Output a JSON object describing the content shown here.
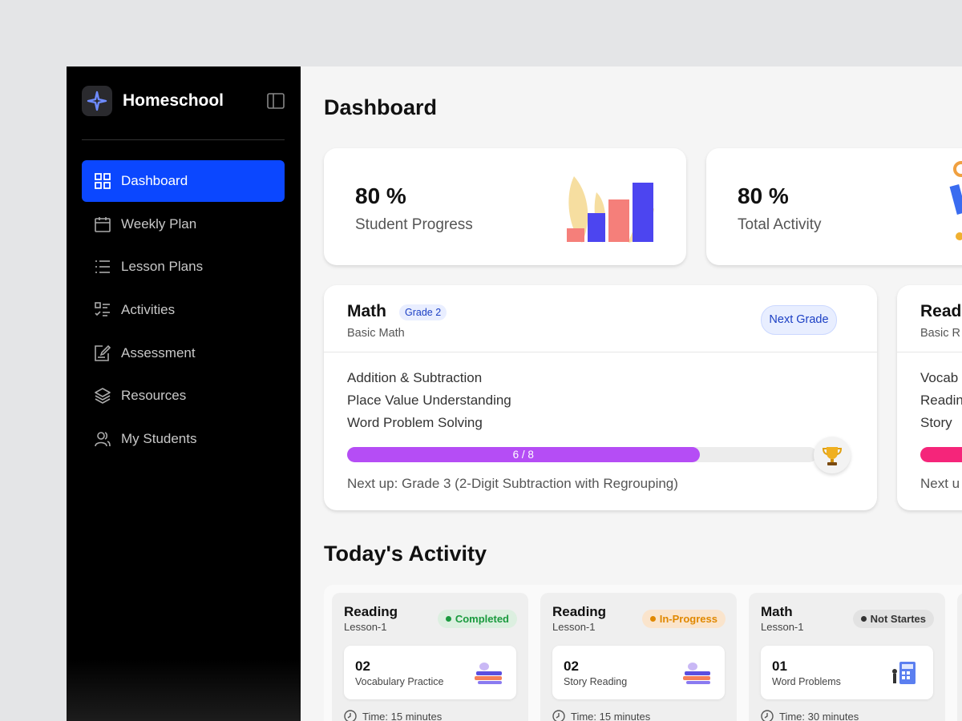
{
  "sidebar": {
    "brand": "Homeschool",
    "nav": [
      "Dashboard",
      "Weekly Plan",
      "Lesson Plans",
      "Activities",
      "Assessment",
      "Resources",
      "My Students"
    ]
  },
  "header": {
    "title": "Dashboard"
  },
  "stats": [
    {
      "value": "80 %",
      "label": "Student Progress"
    },
    {
      "value": "80 %",
      "label": "Total Activity"
    }
  ],
  "subjects": [
    {
      "name": "Math",
      "grade": "Grade 2",
      "subtitle": "Basic Math",
      "button": "Next Grade",
      "topics": [
        "Addition & Subtraction",
        "Place Value Understanding",
        "Word Problem Solving"
      ],
      "progress": {
        "value": 6,
        "max": 8,
        "label": "6 / 8"
      },
      "next": "Next up: Grade 3 (2-Digit Subtraction with Regrouping)"
    },
    {
      "name": "Read",
      "subtitle": "Basic R",
      "topics": [
        "Vocab",
        "Readin",
        "Story"
      ],
      "next": "Next u"
    }
  ],
  "activity": {
    "title": "Today's Activity",
    "cards": [
      {
        "subject": "Reading",
        "lesson": "Lesson-1",
        "status": "Completed",
        "count": "02",
        "task": "Vocabulary Practice",
        "time": "Time: 15 minutes"
      },
      {
        "subject": "Reading",
        "lesson": "Lesson-1",
        "status": "In-Progress",
        "count": "02",
        "task": "Story Reading",
        "time": "Time: 15 minutes"
      },
      {
        "subject": "Math",
        "lesson": "Lesson-1",
        "status": "Not Startes",
        "count": "01",
        "task": "Word Problems",
        "time": "Time: 30 minutes"
      }
    ]
  }
}
